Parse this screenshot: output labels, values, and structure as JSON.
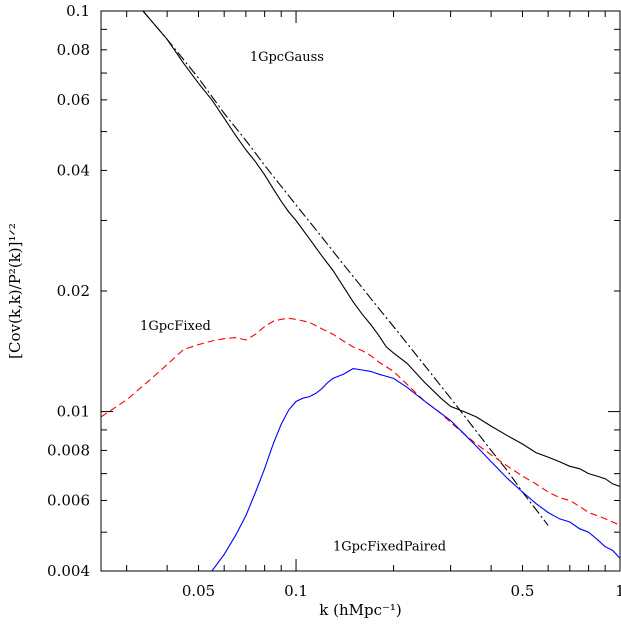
{
  "chart_data": {
    "type": "line",
    "xlabel": "k (hMpc⁻¹)",
    "ylabel": "[Cov(k,k)/P²(k)]¹ᐟ²",
    "xscale": "log",
    "yscale": "log",
    "xlim": [
      0.025,
      1.0
    ],
    "ylim": [
      0.004,
      0.1
    ],
    "x_ticks": [
      {
        "value": 0.05,
        "label": "0.05"
      },
      {
        "value": 0.1,
        "label": "0.1"
      },
      {
        "value": 0.5,
        "label": "0.5"
      },
      {
        "value": 1.0,
        "label": "1"
      }
    ],
    "y_ticks": [
      {
        "value": 0.1,
        "label": "0.1"
      },
      {
        "value": 0.08,
        "label": "0.08"
      },
      {
        "value": 0.06,
        "label": "0.06"
      },
      {
        "value": 0.04,
        "label": "0.04"
      },
      {
        "value": 0.02,
        "label": "0.02"
      },
      {
        "value": 0.01,
        "label": "0.01"
      },
      {
        "value": 0.008,
        "label": "0.008"
      },
      {
        "value": 0.006,
        "label": "0.006"
      },
      {
        "value": 0.004,
        "label": "0.004"
      }
    ],
    "grid": false,
    "annotations": [
      {
        "text": "1GpcGauss",
        "x": 0.072,
        "y": 0.075
      },
      {
        "text": "1GpcFixed",
        "x": 0.033,
        "y": 0.016
      },
      {
        "text": "1GpcFixedPaired",
        "x": 0.13,
        "y": 0.0045
      }
    ],
    "series": [
      {
        "color": "#000000",
        "dash": "solid",
        "x": [
          0.0337,
          0.04,
          0.045,
          0.05,
          0.055,
          0.06,
          0.065,
          0.07,
          0.075,
          0.08,
          0.085,
          0.09,
          0.095,
          0.1,
          0.11,
          0.12,
          0.13,
          0.14,
          0.15,
          0.16,
          0.17,
          0.18,
          0.19,
          0.2,
          0.22,
          0.25,
          0.28,
          0.3,
          0.33,
          0.36,
          0.4,
          0.45,
          0.5,
          0.55,
          0.6,
          0.65,
          0.7,
          0.75,
          0.8,
          0.85,
          0.9,
          0.95,
          1.0
        ],
        "y": [
          0.1,
          0.085,
          0.074,
          0.066,
          0.06,
          0.054,
          0.049,
          0.045,
          0.042,
          0.039,
          0.036,
          0.0335,
          0.0315,
          0.03,
          0.027,
          0.0245,
          0.0225,
          0.0205,
          0.0188,
          0.0175,
          0.0165,
          0.0155,
          0.0145,
          0.014,
          0.0132,
          0.0118,
          0.0108,
          0.0103,
          0.01,
          0.0097,
          0.0092,
          0.0087,
          0.0083,
          0.0079,
          0.0077,
          0.0075,
          0.0073,
          0.0072,
          0.007,
          0.0069,
          0.0068,
          0.0066,
          0.0065
        ]
      },
      {
        "color": "#000000",
        "dash": "dash-dot",
        "x": [
          0.0337,
          0.04,
          0.05,
          0.06,
          0.07,
          0.08,
          0.09,
          0.1,
          0.12,
          0.14,
          0.16,
          0.18,
          0.2,
          0.25,
          0.3,
          0.35,
          0.4,
          0.45,
          0.5,
          0.55,
          0.6
        ],
        "y": [
          0.1,
          0.085,
          0.068,
          0.0555,
          0.0475,
          0.0412,
          0.0365,
          0.0328,
          0.0273,
          0.0233,
          0.0204,
          0.0181,
          0.0163,
          0.013,
          0.0108,
          0.0092,
          0.008,
          0.0071,
          0.0063,
          0.0057,
          0.0052
        ]
      },
      {
        "color": "#ff0000",
        "dash": "dashed",
        "x": [
          0.025,
          0.03,
          0.035,
          0.04,
          0.045,
          0.05,
          0.055,
          0.06,
          0.065,
          0.07,
          0.075,
          0.08,
          0.085,
          0.09,
          0.095,
          0.1,
          0.11,
          0.12,
          0.13,
          0.14,
          0.15,
          0.16,
          0.17,
          0.18,
          0.2,
          0.22,
          0.25,
          0.28,
          0.3,
          0.33,
          0.36,
          0.4,
          0.45,
          0.5,
          0.55,
          0.6,
          0.65,
          0.7,
          0.75,
          0.8,
          0.85,
          0.9,
          0.95,
          1.0
        ],
        "y": [
          0.0097,
          0.0107,
          0.0119,
          0.0131,
          0.0143,
          0.0147,
          0.015,
          0.0152,
          0.0153,
          0.0151,
          0.0156,
          0.0163,
          0.0168,
          0.017,
          0.0171,
          0.017,
          0.0167,
          0.0161,
          0.0156,
          0.015,
          0.0145,
          0.0142,
          0.0138,
          0.0133,
          0.0126,
          0.0117,
          0.0106,
          0.0099,
          0.0094,
          0.0088,
          0.0083,
          0.0078,
          0.0073,
          0.0069,
          0.0066,
          0.0063,
          0.0061,
          0.006,
          0.0058,
          0.0056,
          0.0055,
          0.0054,
          0.0053,
          0.0052
        ]
      },
      {
        "color": "#0000ff",
        "dash": "solid",
        "x": [
          0.055,
          0.06,
          0.065,
          0.07,
          0.075,
          0.08,
          0.085,
          0.09,
          0.095,
          0.1,
          0.105,
          0.11,
          0.115,
          0.12,
          0.125,
          0.13,
          0.14,
          0.15,
          0.16,
          0.17,
          0.18,
          0.2,
          0.22,
          0.25,
          0.28,
          0.3,
          0.33,
          0.36,
          0.4,
          0.45,
          0.5,
          0.55,
          0.6,
          0.65,
          0.7,
          0.75,
          0.8,
          0.85,
          0.9,
          0.95,
          1.0
        ],
        "y": [
          0.004,
          0.0044,
          0.0049,
          0.0055,
          0.0063,
          0.0072,
          0.0083,
          0.0093,
          0.0101,
          0.0106,
          0.0108,
          0.0109,
          0.0111,
          0.0114,
          0.0118,
          0.0121,
          0.0124,
          0.0128,
          0.0127,
          0.0126,
          0.0124,
          0.0121,
          0.0115,
          0.0106,
          0.0099,
          0.0095,
          0.0088,
          0.0082,
          0.0075,
          0.0068,
          0.0063,
          0.0059,
          0.0056,
          0.0054,
          0.0053,
          0.0051,
          0.005,
          0.0048,
          0.0046,
          0.0045,
          0.0043
        ]
      }
    ]
  }
}
